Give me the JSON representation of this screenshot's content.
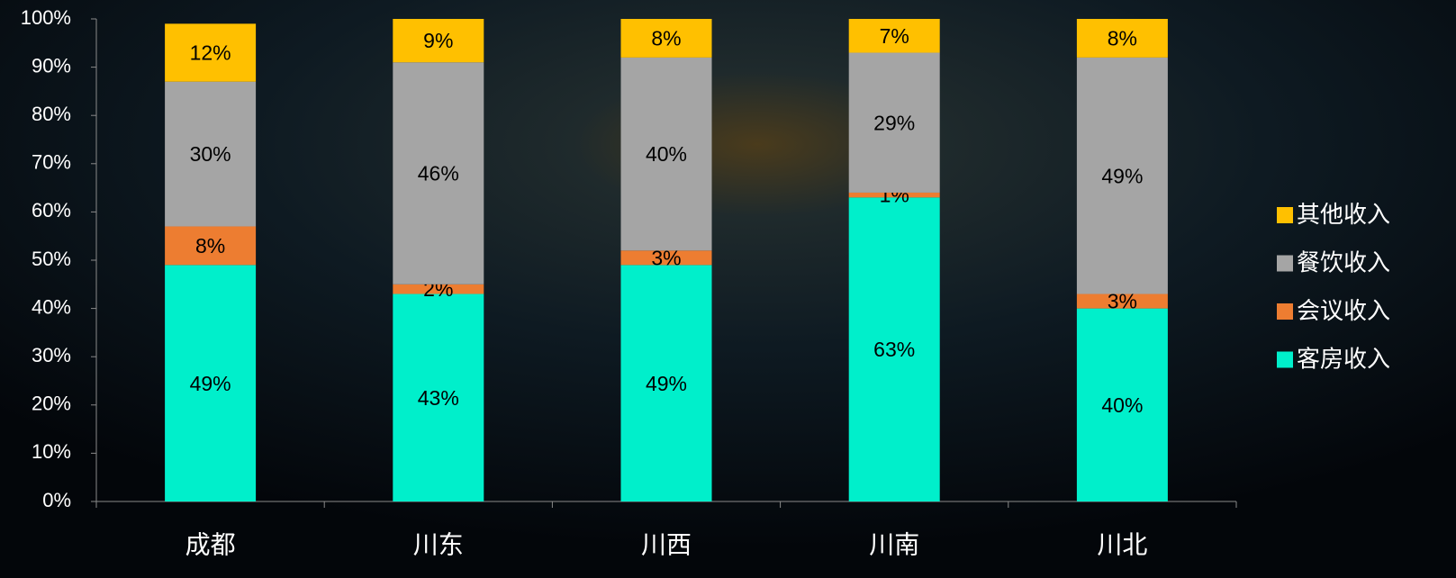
{
  "chart_data": {
    "type": "stacked_bar",
    "categories": [
      "成都",
      "川东",
      "川西",
      "川南",
      "川北"
    ],
    "series": [
      {
        "name": "客房收入",
        "color": "#00efcb",
        "values": [
          49,
          43,
          49,
          63,
          40
        ],
        "value_labels": [
          "49%",
          "43%",
          "49%",
          "63%",
          "40%"
        ]
      },
      {
        "name": "会议收入",
        "color": "#ed7d31",
        "values": [
          8,
          2,
          3,
          1,
          3
        ],
        "value_labels": [
          "8%",
          "2%",
          "3%",
          "1%",
          "3%"
        ]
      },
      {
        "name": "餐饮收入",
        "color": "#a5a5a5",
        "values": [
          30,
          46,
          40,
          29,
          49
        ],
        "value_labels": [
          "30%",
          "46%",
          "40%",
          "29%",
          "49%"
        ]
      },
      {
        "name": "其他收入",
        "color": "#ffc000",
        "values": [
          12,
          9,
          8,
          7,
          8
        ],
        "value_labels": [
          "12%",
          "9%",
          "8%",
          "7%",
          "8%"
        ]
      }
    ],
    "ylim": [
      0,
      100
    ],
    "yticks": [
      {
        "value": 0,
        "label": "0%"
      },
      {
        "value": 10,
        "label": "10%"
      },
      {
        "value": 20,
        "label": "20%"
      },
      {
        "value": 30,
        "label": "30%"
      },
      {
        "value": 40,
        "label": "40%"
      },
      {
        "value": 50,
        "label": "50%"
      },
      {
        "value": 60,
        "label": "60%"
      },
      {
        "value": 70,
        "label": "70%"
      },
      {
        "value": 80,
        "label": "80%"
      },
      {
        "value": 90,
        "label": "90%"
      },
      {
        "value": 100,
        "label": "100%"
      }
    ],
    "grid": false,
    "legend": "right"
  }
}
